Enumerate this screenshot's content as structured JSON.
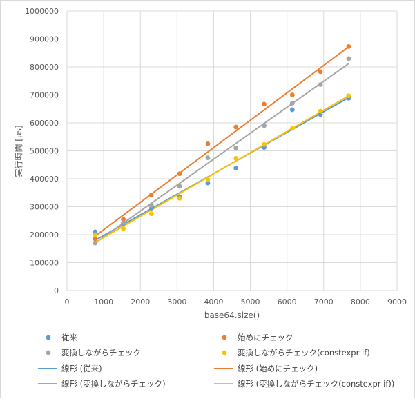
{
  "chart_data": {
    "type": "scatter",
    "title": "",
    "xlabel": "base64.size()",
    "ylabel": "実行時間 [µs]",
    "xlim": [
      0,
      9000
    ],
    "ylim": [
      0,
      1000000
    ],
    "xticks": [
      "0",
      "1000",
      "2000",
      "3000",
      "4000",
      "5000",
      "6000",
      "7000",
      "8000",
      "9000"
    ],
    "yticks": [
      "0",
      "100000",
      "200000",
      "300000",
      "400000",
      "500000",
      "600000",
      "700000",
      "800000",
      "900000",
      "1000000"
    ],
    "grid": true,
    "legend_position": "bottom",
    "x": [
      768,
      1536,
      2304,
      3072,
      3840,
      4608,
      5376,
      6144,
      6912,
      7680
    ],
    "series": [
      {
        "name": "従来",
        "color": "#5b9bd5",
        "values": [
          210000,
          240000,
          295000,
          335000,
          385000,
          438000,
          512000,
          647000,
          630000,
          688000
        ]
      },
      {
        "name": "始めにチェック",
        "color": "#ed7d31",
        "values": [
          185000,
          255000,
          342000,
          418000,
          525000,
          585000,
          667000,
          700000,
          783000,
          873000
        ]
      },
      {
        "name": "変換しながらチェック",
        "color": "#a5a5a5",
        "values": [
          170000,
          243000,
          305000,
          373000,
          475000,
          510000,
          590000,
          670000,
          737000,
          830000
        ]
      },
      {
        "name": "変換しながらチェック(constexpr if)",
        "color": "#ffc000",
        "values": [
          200000,
          222000,
          275000,
          330000,
          397000,
          473000,
          523000,
          580000,
          642000,
          697000
        ]
      }
    ],
    "trendlines": [
      {
        "name": "線形 (従来)",
        "color": "#5b9bd5",
        "from": [
          768,
          180000
        ],
        "to": [
          7680,
          690000
        ]
      },
      {
        "name": "線形 (始めにチェック)",
        "color": "#ed7d31",
        "from": [
          768,
          195000
        ],
        "to": [
          7680,
          872000
        ]
      },
      {
        "name": "線形 (変換しながらチェック)",
        "color": "#a5a5a5",
        "from": [
          768,
          170000
        ],
        "to": [
          7680,
          812000
        ]
      },
      {
        "name": "線形 (変換しながらチェック(constexpr if))",
        "color": "#ffc000",
        "from": [
          768,
          172000
        ],
        "to": [
          7680,
          697000
        ]
      }
    ]
  }
}
